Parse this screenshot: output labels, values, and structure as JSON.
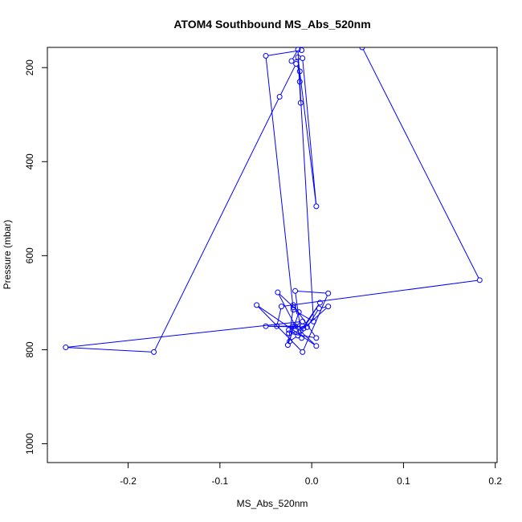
{
  "chart_data": {
    "type": "line",
    "title": "ATOM4 Southbound MS_Abs_520nm",
    "xlabel": "MS_Abs_520nm",
    "ylabel": "Pressure (mbar)",
    "xlim": [
      -0.288,
      0.202
    ],
    "ylim": [
      1040,
      157
    ],
    "y_inverted": true,
    "grid": false,
    "legend": "none",
    "x_ticks": [
      -0.2,
      -0.1,
      0.0,
      0.1,
      0.2
    ],
    "x_tick_labels": [
      "-0.2",
      "-0.1",
      "0.0",
      "0.1",
      "0.2"
    ],
    "y_ticks": [
      200,
      400,
      600,
      800,
      1000
    ],
    "y_tick_labels": [
      "200",
      "400",
      "600",
      "800",
      "1000"
    ],
    "series": [
      {
        "color": "#0000ff",
        "marker": "open-circle",
        "x": [
          0.055,
          0.183,
          -0.033,
          -0.038,
          -0.01,
          -0.05,
          -0.005,
          0.008,
          0.018,
          -0.009,
          0.009,
          -0.012,
          -0.025,
          0.005,
          -0.02,
          -0.02,
          -0.026,
          -0.014,
          -0.037,
          -0.011,
          -0.018,
          0.018,
          -0.01,
          -0.06,
          0.005,
          -0.018,
          -0.02,
          -0.024,
          -0.015,
          -0.025,
          -0.01,
          -0.268,
          -0.172,
          -0.035,
          -0.017,
          -0.013,
          -0.013,
          -0.012,
          -0.015,
          0.005,
          -0.01,
          -0.022,
          -0.015,
          0.002,
          -0.02,
          -0.05,
          -0.011
        ],
        "y": [
          157,
          652,
          708,
          750,
          750,
          750,
          752,
          712,
          708,
          755,
          700,
          760,
          765,
          775,
          705,
          710,
          790,
          720,
          678,
          775,
          675,
          680,
          805,
          705,
          792,
          750,
          750,
          782,
          770,
          758,
          740,
          795,
          805,
          262,
          192,
          208,
          230,
          275,
          178,
          495,
          180,
          186,
          162,
          740,
          715,
          175,
          163
        ]
      }
    ]
  }
}
